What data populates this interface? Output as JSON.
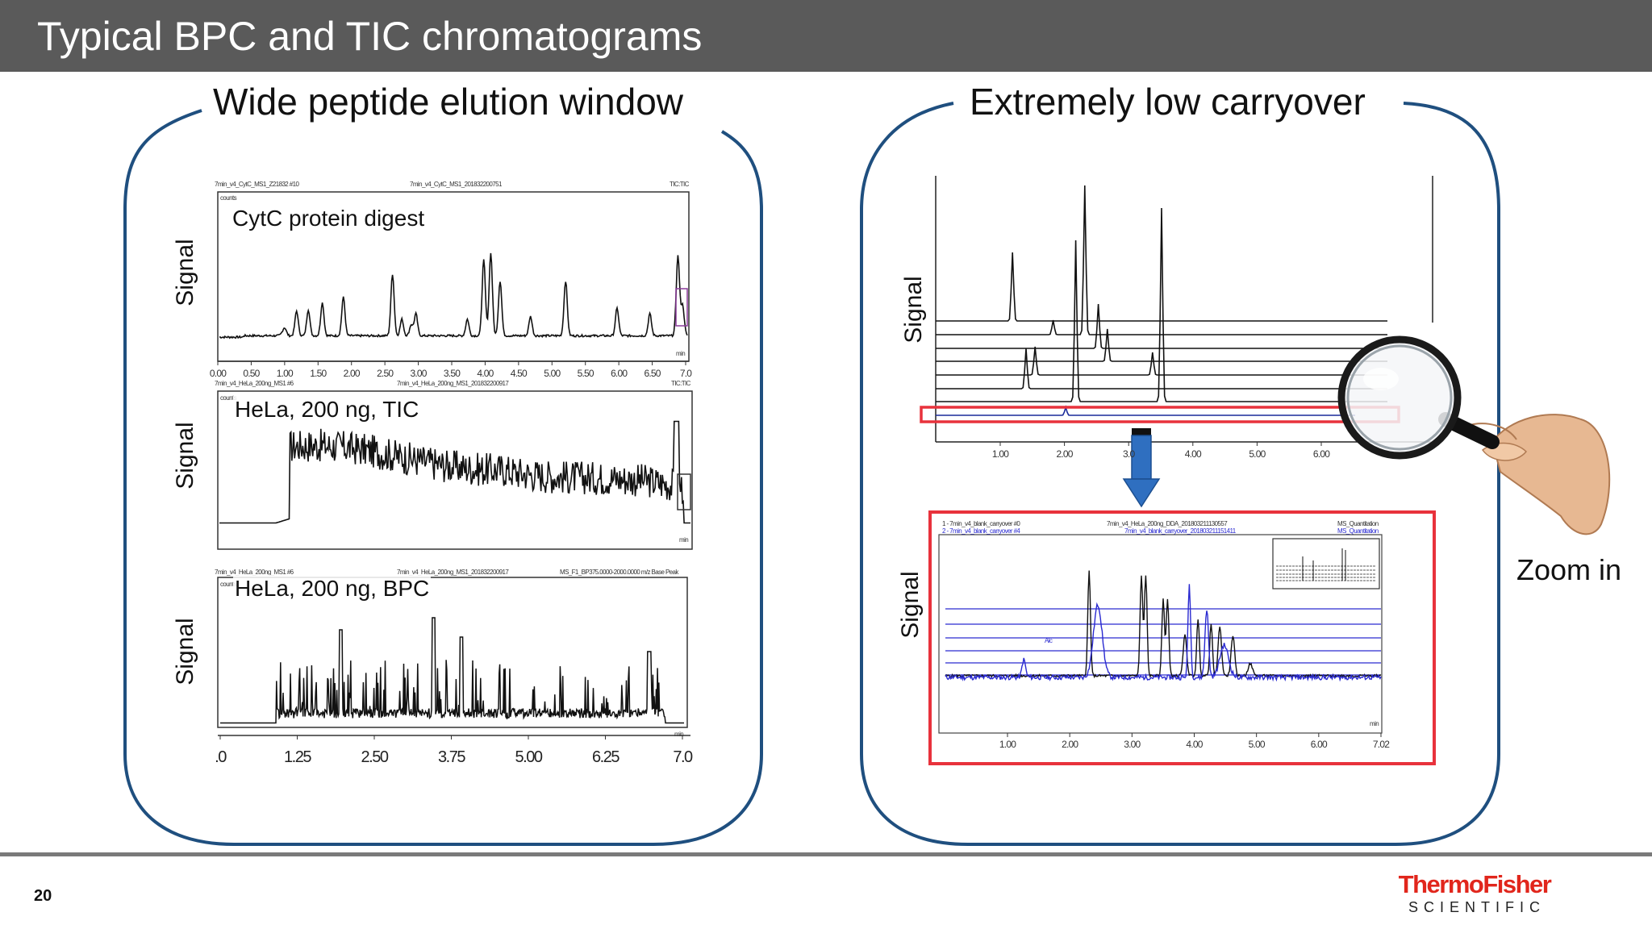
{
  "slide": {
    "title": "Typical BPC and TIC chromatograms",
    "page_number": "20"
  },
  "left_panel": {
    "heading": "Wide peptide elution window",
    "charts": [
      {
        "label": "CytC protein digest",
        "ylabel": "Signal",
        "header_left": "7min_v4_CytC_MS1_Z21832 #10",
        "header_mid": "7min_v4_CytC_MS1_201832200751",
        "header_right": "TIC:TIC",
        "unit": "counts",
        "xunit": "min",
        "x_ticks": [
          "0.00",
          "0.50",
          "1.00",
          "1.50",
          "2.00",
          "2.50",
          "3.00",
          "3.50",
          "4.00",
          "4.50",
          "5.00",
          "5.50",
          "6.00",
          "6.50",
          "7.0"
        ]
      },
      {
        "label": "HeLa, 200 ng, TIC",
        "ylabel": "Signal",
        "header_left": "7min_v4_HeLa_200ng_MS1 #6",
        "header_mid": "7min_v4_HeLa_200ng_MS1_201832200917",
        "header_right": "TIC:TIC",
        "unit": "counts",
        "xunit": "min"
      },
      {
        "label": "HeLa, 200 ng, BPC",
        "ylabel": "Signal",
        "header_left": "7min_v4_HeLa_200ng_MS1 #6",
        "header_mid": "7min_v4_HeLa_200ng_MS1_201832200917",
        "header_right": "MS_F1_BP375.0000-2000.0000 m/z Base Peak",
        "unit": "counts",
        "xunit": "min",
        "x_ticks": [
          ".0",
          "1.25",
          "2.50",
          "3.75",
          "5.00",
          "6.25",
          "7.0"
        ]
      }
    ]
  },
  "right_panel": {
    "heading": "Extremely low carryover",
    "top_chart": {
      "ylabel": "Signal",
      "x_ticks": [
        "1.00",
        "2.00",
        "3.0",
        "4.00",
        "5.00",
        "6.00"
      ]
    },
    "zoom_chart": {
      "ylabel": "Signal",
      "header_line1_left": "1 - 7min_v4_blank_carryover #0",
      "header_line1_mid": "7min_v4_HeLa_200ng_DDA_201803211130557",
      "header_line1_right": "MS_Quantitation",
      "header_line2_left": "2 - 7min_v4_blank_carryover #4",
      "header_line2_mid": "7min_v4_blank_carryover_201803211151411",
      "header_line2_right": "MS_Quantitation",
      "annotation": "Alc",
      "xunit": "min",
      "x_ticks": [
        "1.00",
        "2.00",
        "3.00",
        "4.00",
        "5.00",
        "6.00",
        "7.02"
      ]
    },
    "zoom_label": "Zoom in"
  },
  "brand": {
    "line1": "ThermoFisher",
    "line2": "SCIENTIFIC",
    "accent_color": "#e1261c",
    "highlight_color": "#e8323c",
    "arrow_color": "#2f6fc0",
    "panel_border_color": "#1f4f7f"
  }
}
